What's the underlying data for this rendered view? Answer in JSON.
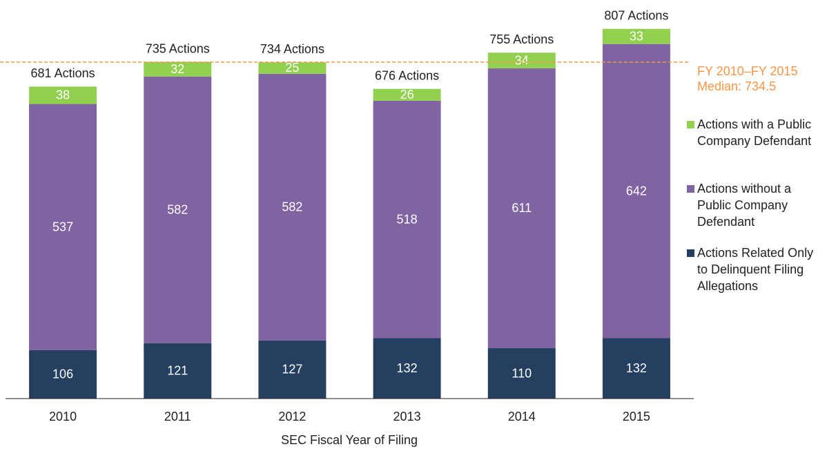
{
  "chart_data": {
    "type": "stacked-bar",
    "x_label": "SEC Fiscal Year of Filing",
    "categories": [
      "2010",
      "2011",
      "2012",
      "2013",
      "2014",
      "2015"
    ],
    "series": [
      {
        "name": "Actions Related Only to Delinquent Filing Allegations",
        "color": "#243f60",
        "values": [
          106,
          121,
          127,
          132,
          110,
          132
        ]
      },
      {
        "name": "Actions without a Public Company Defendant",
        "color": "#8064a2",
        "values": [
          537,
          582,
          582,
          518,
          611,
          642
        ]
      },
      {
        "name": "Actions with a Public Company Defendant",
        "color": "#92d050",
        "values": [
          38,
          32,
          25,
          26,
          34,
          33
        ]
      }
    ],
    "total_labels": [
      "681 Actions",
      "735 Actions",
      "734 Actions",
      "676 Actions",
      "755 Actions",
      "807 Actions"
    ],
    "median": {
      "value": 734.5,
      "color": "#f79646",
      "lines": [
        "FY 2010–FY 2015",
        "Median: 734.5"
      ]
    },
    "ylim": [
      0,
      870
    ],
    "legend": "right"
  }
}
